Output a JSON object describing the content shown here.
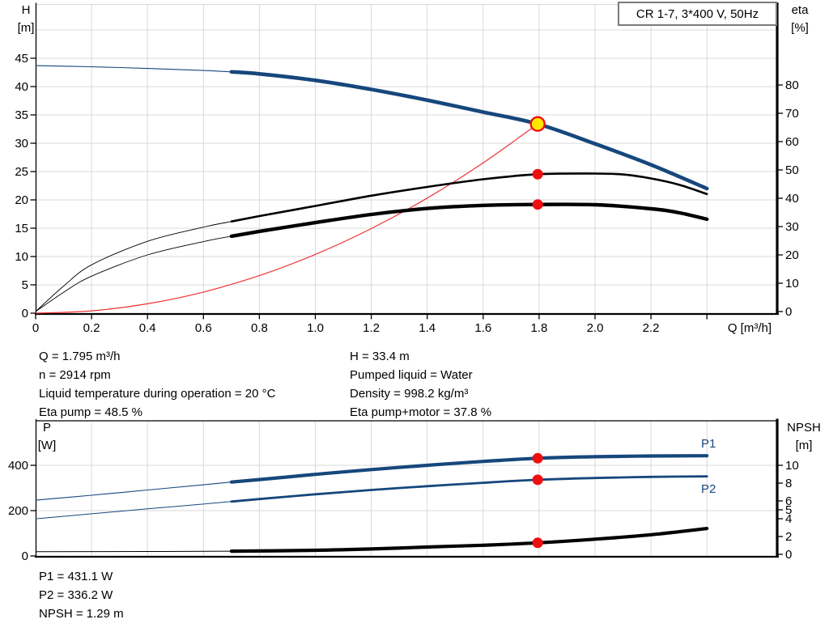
{
  "info_panel": {
    "left": [
      "Q = 1.795 m³/h",
      "n = 2914 rpm",
      "Liquid temperature during operation = 20 °C",
      "Eta pump = 48.5 %"
    ],
    "right": [
      "H = 33.4 m",
      "Pumped liquid = Water",
      "Density = 998.2 kg/m³",
      "Eta pump+motor = 37.8 %"
    ]
  },
  "results_panel": {
    "lines": [
      "P1 = 431.1 W",
      "P2 = 336.2 W",
      "NPSH = 1.29 m"
    ]
  },
  "series_labels": {
    "p1": "P1",
    "p2": "P2"
  },
  "colors": {
    "curve_blue": "#16477c",
    "curve_black": "#000000",
    "system_red": "#ee3333",
    "marker_red": "#ee0f0f",
    "marker_yellow": "#ffe600",
    "grid": "#d9d9d9",
    "axis": "#000000",
    "box_border": "#7a7a7a"
  },
  "chart_data": [
    {
      "type": "line",
      "title": "CR 1-7, 3*400 V, 50Hz",
      "xlabel": "Q [m³/h]",
      "ylabel": "H [m]",
      "ylabel_lines": [
        "H",
        "[m]"
      ],
      "y2label": "eta [%]",
      "y2label_lines": [
        "eta",
        "[%]"
      ],
      "xlim": [
        0,
        2.65
      ],
      "ylim": [
        0,
        54.5
      ],
      "y2lim": [
        0,
        80
      ],
      "grid": true,
      "x_ticks": [
        0,
        0.2,
        0.4,
        0.6,
        0.8,
        1.0,
        1.2,
        1.4,
        1.6,
        1.8,
        2.0,
        2.2,
        2.4
      ],
      "x_tick_labels": [
        "0",
        "0.2",
        "0.4",
        "0.6",
        "0.8",
        "1.0",
        "1.2",
        "1.4",
        "1.6",
        "1.8",
        "2.0",
        "2.2",
        ""
      ],
      "y_ticks": [
        0,
        5,
        10,
        15,
        20,
        25,
        30,
        35,
        40,
        45
      ],
      "y2_ticks": [
        0,
        10,
        20,
        30,
        40,
        50,
        60,
        70,
        80
      ],
      "series": [
        {
          "name": "System curve",
          "dn": "system-curve",
          "axis": "h",
          "color": "#ee3333",
          "points": [
            [
              0,
              0
            ],
            [
              0.2,
              0.41
            ],
            [
              0.4,
              1.66
            ],
            [
              0.6,
              3.73
            ],
            [
              0.8,
              6.63
            ],
            [
              1.0,
              10.37
            ],
            [
              1.2,
              14.93
            ],
            [
              1.4,
              20.32
            ],
            [
              1.6,
              26.54
            ],
            [
              1.795,
              33.4
            ]
          ]
        },
        {
          "name": "Eta pump",
          "dn": "eta-pump-curve",
          "axis": "eta",
          "color": "#000000",
          "split_q": 0.7,
          "points": [
            [
              0,
              0
            ],
            [
              0.1,
              9
            ],
            [
              0.2,
              16.5
            ],
            [
              0.4,
              24.8
            ],
            [
              0.6,
              29.8
            ],
            [
              0.7,
              31.8
            ],
            [
              0.8,
              33.7
            ],
            [
              1.0,
              37.3
            ],
            [
              1.2,
              40.9
            ],
            [
              1.4,
              44.0
            ],
            [
              1.6,
              46.7
            ],
            [
              1.795,
              48.5
            ],
            [
              2.0,
              48.7
            ],
            [
              2.1,
              48.4
            ],
            [
              2.2,
              47.0
            ],
            [
              2.3,
              44.8
            ],
            [
              2.4,
              41.5
            ]
          ]
        },
        {
          "name": "Eta pump+motor",
          "dn": "eta-pump-motor-curve",
          "axis": "eta",
          "color": "#000000",
          "split_q": 0.7,
          "points": [
            [
              0,
              0
            ],
            [
              0.1,
              6.8
            ],
            [
              0.2,
              12.5
            ],
            [
              0.4,
              20.0
            ],
            [
              0.6,
              24.7
            ],
            [
              0.7,
              26.6
            ],
            [
              0.8,
              28.3
            ],
            [
              1.0,
              31.4
            ],
            [
              1.2,
              34.3
            ],
            [
              1.4,
              36.4
            ],
            [
              1.6,
              37.5
            ],
            [
              1.795,
              37.8
            ],
            [
              2.0,
              37.7
            ],
            [
              2.2,
              36.3
            ],
            [
              2.3,
              34.9
            ],
            [
              2.4,
              32.6
            ]
          ]
        },
        {
          "name": "H (pump curve)",
          "dn": "pump-curve",
          "axis": "h",
          "color": "#16477c",
          "split_q": 0.7,
          "points": [
            [
              0,
              43.7
            ],
            [
              0.2,
              43.5
            ],
            [
              0.4,
              43.2
            ],
            [
              0.6,
              42.85
            ],
            [
              0.7,
              42.6
            ],
            [
              0.8,
              42.25
            ],
            [
              1.0,
              41.1
            ],
            [
              1.2,
              39.5
            ],
            [
              1.4,
              37.6
            ],
            [
              1.6,
              35.5
            ],
            [
              1.795,
              33.4
            ],
            [
              2.0,
              29.9
            ],
            [
              2.2,
              26.2
            ],
            [
              2.4,
              22.0
            ]
          ]
        }
      ],
      "markers": [
        {
          "name": "operating-point",
          "q": 1.795,
          "value": 33.4,
          "axis": "h",
          "style": "duty"
        },
        {
          "name": "eta-pump-duty-dot",
          "q": 1.795,
          "value": 48.5,
          "axis": "eta",
          "style": "dot"
        },
        {
          "name": "eta-pump-motor-duty-dot",
          "q": 1.795,
          "value": 37.8,
          "axis": "eta",
          "style": "dot"
        }
      ]
    },
    {
      "type": "line",
      "title": "",
      "xlabel": "",
      "ylabel": "P [W]",
      "ylabel_lines": [
        "P",
        "[W]"
      ],
      "y2label": "NPSH [m]",
      "y2label_lines": [
        "NPSH",
        "[m]"
      ],
      "xlim": [
        0,
        2.65
      ],
      "ylim": [
        0,
        590
      ],
      "y2lim": [
        0,
        15
      ],
      "grid": true,
      "x_ticks": [
        0,
        0.2,
        0.4,
        0.6,
        0.8,
        1.0,
        1.2,
        1.4,
        1.6,
        1.8,
        2.0,
        2.2,
        2.4
      ],
      "x_tick_labels": [],
      "y_ticks": [
        0,
        200,
        400
      ],
      "y2_ticks": [
        10,
        8,
        6,
        5,
        4,
        2,
        0
      ],
      "series": [
        {
          "name": "P2",
          "dn": "p2-curve",
          "axis": "p",
          "color": "#16477c",
          "split_q": 0.7,
          "points": [
            [
              0,
              164
            ],
            [
              0.2,
              186
            ],
            [
              0.4,
              208
            ],
            [
              0.6,
              229
            ],
            [
              0.7,
              240
            ],
            [
              0.8,
              251
            ],
            [
              1.0,
              272
            ],
            [
              1.2,
              291
            ],
            [
              1.4,
              308
            ],
            [
              1.6,
              323
            ],
            [
              1.795,
              336.2
            ],
            [
              2.0,
              344
            ],
            [
              2.2,
              349
            ],
            [
              2.4,
              351
            ]
          ]
        },
        {
          "name": "P1",
          "dn": "p1-curve",
          "axis": "p",
          "color": "#16477c",
          "split_q": 0.7,
          "points": [
            [
              0,
              246
            ],
            [
              0.2,
              268
            ],
            [
              0.4,
              291
            ],
            [
              0.6,
              314
            ],
            [
              0.7,
              326
            ],
            [
              0.8,
              337
            ],
            [
              1.0,
              360
            ],
            [
              1.2,
              381
            ],
            [
              1.4,
              400
            ],
            [
              1.6,
              417
            ],
            [
              1.795,
              431.1
            ],
            [
              2.0,
              438
            ],
            [
              2.2,
              441
            ],
            [
              2.4,
              442
            ]
          ]
        },
        {
          "name": "NPSH",
          "dn": "npsh-curve",
          "axis": "npsh",
          "color": "#000000",
          "split_q": 0.7,
          "points": [
            [
              0,
              0.3
            ],
            [
              0.4,
              0.32
            ],
            [
              0.7,
              0.35
            ],
            [
              1.0,
              0.45
            ],
            [
              1.2,
              0.6
            ],
            [
              1.4,
              0.82
            ],
            [
              1.6,
              1.02
            ],
            [
              1.795,
              1.29
            ],
            [
              2.0,
              1.7
            ],
            [
              2.2,
              2.2
            ],
            [
              2.4,
              2.9
            ]
          ]
        }
      ],
      "markers": [
        {
          "name": "p1-duty-dot",
          "q": 1.795,
          "value": 431.1,
          "axis": "p",
          "style": "dot"
        },
        {
          "name": "p2-duty-dot",
          "q": 1.795,
          "value": 336.2,
          "axis": "p",
          "style": "dot"
        },
        {
          "name": "npsh-duty-dot",
          "q": 1.795,
          "value": 1.29,
          "axis": "npsh",
          "style": "dot"
        }
      ]
    }
  ]
}
